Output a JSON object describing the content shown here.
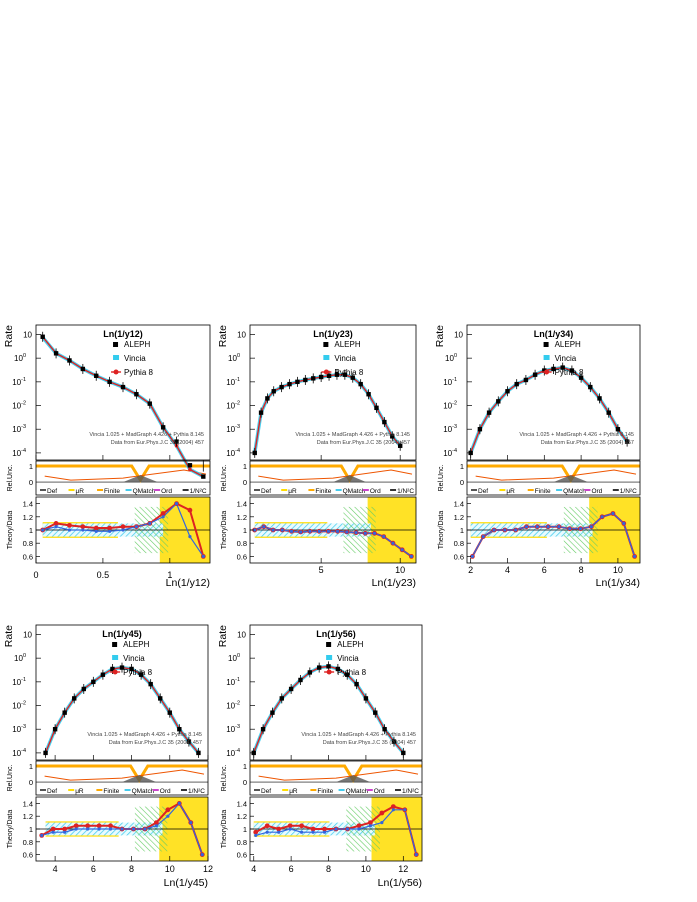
{
  "legend_labels": {
    "data": "ALEPH",
    "vincia": "Vincia",
    "pythia": "Pythia 8"
  },
  "caption_lines": [
    "Vincia 1.025 + MadGraph 4.426 + Pythia 8.145",
    "Data from Eur.Phys.J.C 35 (2004) 457"
  ],
  "rel_legend": [
    "Def",
    "μR",
    "Finite",
    "QMatch",
    "Ord",
    "1/N²C"
  ],
  "ylabels": {
    "main": "Rate",
    "rel": "Rel.Unc.",
    "ratio": "Theory/Data"
  },
  "colors": {
    "data": "#000000",
    "vincia": "#33ccee",
    "pythia": "#dd2222",
    "band_yellow": "#ffdd00",
    "band_cyan": "#44ccee",
    "band_green": "#66cc66",
    "rel_orange": "#ffaa00",
    "rel_red": "#ee5500",
    "rel_gray": "#555555"
  },
  "chart_data": [
    {
      "type": "line",
      "title": "Ln(1/y12)",
      "xlabel": "Ln(1/y12)",
      "xlim": [
        0,
        1.3
      ],
      "xticks": [
        0,
        0.5,
        1
      ],
      "ylim_log": [
        -4.3,
        1.4
      ],
      "ratio_ylim": [
        0.5,
        1.5
      ],
      "data": {
        "x": [
          0.05,
          0.15,
          0.25,
          0.35,
          0.45,
          0.55,
          0.65,
          0.75,
          0.85,
          0.95,
          1.05,
          1.15,
          1.25
        ],
        "y": [
          8,
          1.6,
          0.8,
          0.35,
          0.18,
          0.1,
          0.06,
          0.03,
          0.012,
          0.0012,
          0.0003,
          3e-05,
          1e-05
        ]
      },
      "vincia": {
        "x": [
          0.05,
          0.15,
          0.25,
          0.35,
          0.45,
          0.55,
          0.65,
          0.75,
          0.85,
          0.95,
          1.05,
          1.15,
          1.25
        ],
        "y": [
          7.5,
          1.6,
          0.8,
          0.35,
          0.18,
          0.1,
          0.06,
          0.03,
          0.012,
          0.0012,
          0.0002,
          2e-05,
          1e-05
        ]
      },
      "pythia": {
        "x": [
          0.05,
          0.15,
          0.25,
          0.35,
          0.45,
          0.55,
          0.65,
          0.75,
          0.85,
          0.95,
          1.05,
          1.15,
          1.25
        ],
        "y": [
          8,
          1.6,
          0.8,
          0.35,
          0.18,
          0.1,
          0.06,
          0.03,
          0.012,
          0.0012,
          0.0002,
          2e-05,
          1e-05
        ]
      },
      "ratio_vincia": [
        1.0,
        1.05,
        1.0,
        1.0,
        0.98,
        0.98,
        1.0,
        1.05,
        1.1,
        1.2,
        1.4,
        0.9,
        0.6
      ],
      "ratio_pythia": [
        1.0,
        1.1,
        1.07,
        1.05,
        1.03,
        1.03,
        1.05,
        1.05,
        1.1,
        1.25,
        1.4,
        1.3,
        0.6
      ]
    },
    {
      "type": "line",
      "title": "Ln(1/y23)",
      "xlabel": "Ln(1/y23)",
      "xlim": [
        0.5,
        11
      ],
      "xticks": [
        5,
        10
      ],
      "ylim_log": [
        -4.3,
        1.4
      ],
      "ratio_ylim": [
        0.5,
        1.5
      ],
      "data": {
        "x": [
          0.8,
          1.2,
          1.6,
          2,
          2.5,
          3,
          3.5,
          4,
          4.5,
          5,
          5.5,
          6,
          6.5,
          7,
          7.5,
          8,
          8.5,
          9,
          9.5,
          10
        ],
        "y": [
          0.0001,
          0.005,
          0.02,
          0.04,
          0.06,
          0.08,
          0.1,
          0.12,
          0.14,
          0.16,
          0.18,
          0.2,
          0.2,
          0.15,
          0.08,
          0.03,
          0.008,
          0.002,
          0.0005,
          0.0002
        ]
      },
      "vincia": {
        "x": [
          0.8,
          1.2,
          1.6,
          2,
          2.5,
          3,
          3.5,
          4,
          4.5,
          5,
          5.5,
          6,
          6.5,
          7,
          7.5,
          8,
          8.5,
          9,
          9.5,
          10
        ],
        "y": [
          0.0001,
          0.005,
          0.02,
          0.04,
          0.06,
          0.08,
          0.1,
          0.12,
          0.14,
          0.16,
          0.18,
          0.2,
          0.2,
          0.15,
          0.08,
          0.03,
          0.008,
          0.002,
          0.0005,
          0.0002
        ]
      },
      "pythia": {
        "x": [
          0.8,
          1.2,
          1.6,
          2,
          2.5,
          3,
          3.5,
          4,
          4.5,
          5,
          5.5,
          6,
          6.5,
          7,
          7.5,
          8,
          8.5,
          9,
          9.5,
          10
        ],
        "y": [
          0.0001,
          0.005,
          0.02,
          0.04,
          0.06,
          0.08,
          0.1,
          0.12,
          0.14,
          0.16,
          0.18,
          0.2,
          0.2,
          0.15,
          0.08,
          0.03,
          0.008,
          0.002,
          0.0005,
          0.0002
        ]
      },
      "ratio_vincia": [
        1.0,
        1.05,
        1.0,
        1.0,
        0.98,
        0.97,
        0.98,
        0.98,
        0.98,
        0.98,
        0.97,
        0.96,
        0.95,
        0.95,
        0.9,
        0.8,
        0.7,
        0.6
      ],
      "ratio_pythia": [
        1.0,
        1.05,
        1.0,
        1.0,
        0.98,
        0.97,
        0.98,
        0.98,
        0.98,
        0.98,
        0.97,
        0.96,
        0.95,
        0.95,
        0.9,
        0.8,
        0.7,
        0.6
      ]
    },
    {
      "type": "line",
      "title": "Ln(1/y34)",
      "xlabel": "Ln(1/y34)",
      "xlim": [
        1.8,
        11.2
      ],
      "xticks": [
        2,
        4,
        6,
        8,
        10
      ],
      "ylim_log": [
        -4.3,
        1.4
      ],
      "ratio_ylim": [
        0.5,
        1.5
      ],
      "data": {
        "x": [
          2,
          2.5,
          3,
          3.5,
          4,
          4.5,
          5,
          5.5,
          6,
          6.5,
          7,
          7.5,
          8,
          8.5,
          9,
          9.5,
          10,
          10.5
        ],
        "y": [
          0.0001,
          0.001,
          0.005,
          0.015,
          0.04,
          0.08,
          0.12,
          0.2,
          0.3,
          0.35,
          0.4,
          0.3,
          0.15,
          0.06,
          0.02,
          0.005,
          0.001,
          0.0003
        ]
      },
      "vincia": {
        "x": [
          2,
          2.5,
          3,
          3.5,
          4,
          4.5,
          5,
          5.5,
          6,
          6.5,
          7,
          7.5,
          8,
          8.5,
          9,
          9.5,
          10,
          10.5
        ],
        "y": [
          0.0001,
          0.001,
          0.005,
          0.015,
          0.04,
          0.08,
          0.12,
          0.2,
          0.3,
          0.35,
          0.4,
          0.3,
          0.15,
          0.06,
          0.02,
          0.005,
          0.001,
          0.0003
        ]
      },
      "pythia": {
        "x": [
          2,
          2.5,
          3,
          3.5,
          4,
          4.5,
          5,
          5.5,
          6,
          6.5,
          7,
          7.5,
          8,
          8.5,
          9,
          9.5,
          10,
          10.5
        ],
        "y": [
          0.0001,
          0.001,
          0.005,
          0.015,
          0.04,
          0.08,
          0.12,
          0.2,
          0.3,
          0.35,
          0.4,
          0.3,
          0.15,
          0.06,
          0.02,
          0.005,
          0.001,
          0.0003
        ]
      },
      "ratio_vincia": [
        0.6,
        0.9,
        1.0,
        1.0,
        1.0,
        1.05,
        1.05,
        1.05,
        1.05,
        1.02,
        1.02,
        1.05,
        1.2,
        1.25,
        1.1,
        0.6
      ],
      "ratio_pythia": [
        0.6,
        0.9,
        1.0,
        1.0,
        1.0,
        1.05,
        1.05,
        1.05,
        1.05,
        1.02,
        1.02,
        1.05,
        1.2,
        1.25,
        1.1,
        0.6
      ]
    },
    {
      "type": "line",
      "title": "Ln(1/y45)",
      "xlabel": "Ln(1/y45)",
      "xlim": [
        3,
        12
      ],
      "xticks": [
        4,
        6,
        8,
        10,
        12
      ],
      "ylim_log": [
        -4.3,
        1.4
      ],
      "ratio_ylim": [
        0.5,
        1.5
      ],
      "data": {
        "x": [
          3.5,
          4,
          4.5,
          5,
          5.5,
          6,
          6.5,
          7,
          7.5,
          8,
          8.5,
          9,
          9.5,
          10,
          10.5,
          11,
          11.5
        ],
        "y": [
          0.0001,
          0.001,
          0.005,
          0.02,
          0.05,
          0.1,
          0.2,
          0.35,
          0.4,
          0.35,
          0.2,
          0.08,
          0.02,
          0.005,
          0.001,
          0.0003,
          0.0001
        ]
      },
      "vincia": {
        "x": [
          3.5,
          4,
          4.5,
          5,
          5.5,
          6,
          6.5,
          7,
          7.5,
          8,
          8.5,
          9,
          9.5,
          10,
          10.5,
          11,
          11.5
        ],
        "y": [
          0.0001,
          0.001,
          0.005,
          0.02,
          0.05,
          0.1,
          0.2,
          0.35,
          0.4,
          0.35,
          0.2,
          0.08,
          0.02,
          0.005,
          0.001,
          0.0003,
          0.0001
        ]
      },
      "pythia": {
        "x": [
          3.5,
          4,
          4.5,
          5,
          5.5,
          6,
          6.5,
          7,
          7.5,
          8,
          8.5,
          9,
          9.5,
          10,
          10.5,
          11,
          11.5
        ],
        "y": [
          0.0001,
          0.001,
          0.005,
          0.02,
          0.05,
          0.1,
          0.2,
          0.35,
          0.4,
          0.35,
          0.2,
          0.08,
          0.02,
          0.005,
          0.001,
          0.0003,
          0.0001
        ]
      },
      "ratio_vincia": [
        0.9,
        0.95,
        0.95,
        1.0,
        1.0,
        1.0,
        1.0,
        1.0,
        1.0,
        1.0,
        1.05,
        1.2,
        1.4,
        1.1,
        0.6
      ],
      "ratio_pythia": [
        0.9,
        1.0,
        1.0,
        1.05,
        1.05,
        1.05,
        1.05,
        1.0,
        1.0,
        1.0,
        1.1,
        1.3,
        1.4,
        1.1,
        0.6
      ]
    },
    {
      "type": "line",
      "title": "Ln(1/y56)",
      "xlabel": "Ln(1/y56)",
      "xlim": [
        3.8,
        13
      ],
      "xticks": [
        4,
        6,
        8,
        10,
        12
      ],
      "ylim_log": [
        -4.3,
        1.4
      ],
      "ratio_ylim": [
        0.5,
        1.5
      ],
      "data": {
        "x": [
          4,
          4.5,
          5,
          5.5,
          6,
          6.5,
          7,
          7.5,
          8,
          8.5,
          9,
          9.5,
          10,
          10.5,
          11,
          11.5,
          12
        ],
        "y": [
          0.0001,
          0.001,
          0.005,
          0.02,
          0.05,
          0.12,
          0.25,
          0.4,
          0.45,
          0.35,
          0.2,
          0.08,
          0.02,
          0.005,
          0.001,
          0.0003,
          0.0001
        ]
      },
      "vincia": {
        "x": [
          4,
          4.5,
          5,
          5.5,
          6,
          6.5,
          7,
          7.5,
          8,
          8.5,
          9,
          9.5,
          10,
          10.5,
          11,
          11.5,
          12
        ],
        "y": [
          0.0001,
          0.001,
          0.005,
          0.02,
          0.05,
          0.12,
          0.25,
          0.4,
          0.45,
          0.35,
          0.2,
          0.08,
          0.02,
          0.005,
          0.001,
          0.0003,
          0.0001
        ]
      },
      "pythia": {
        "x": [
          4,
          4.5,
          5,
          5.5,
          6,
          6.5,
          7,
          7.5,
          8,
          8.5,
          9,
          9.5,
          10,
          10.5,
          11,
          11.5,
          12
        ],
        "y": [
          0.0001,
          0.001,
          0.005,
          0.02,
          0.05,
          0.12,
          0.25,
          0.4,
          0.45,
          0.35,
          0.2,
          0.08,
          0.02,
          0.005,
          0.001,
          0.0003,
          0.0001
        ]
      },
      "ratio_vincia": [
        0.9,
        0.95,
        0.95,
        1.0,
        0.95,
        0.95,
        0.95,
        1.0,
        1.0,
        1.0,
        1.05,
        1.1,
        1.3,
        1.3,
        0.6
      ],
      "ratio_pythia": [
        0.95,
        1.05,
        1.0,
        1.05,
        1.05,
        1.0,
        1.0,
        1.0,
        1.0,
        1.05,
        1.1,
        1.25,
        1.35,
        1.3,
        0.6
      ]
    }
  ]
}
